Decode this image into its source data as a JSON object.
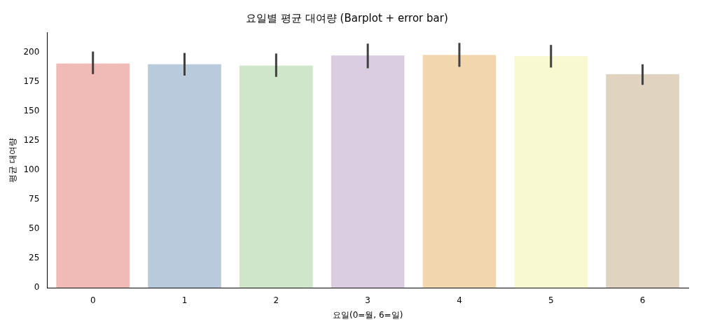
{
  "chart_data": {
    "type": "bar",
    "title": "요일별 평균 대여량 (Barplot + error bar)",
    "xlabel": "요일(0=월, 6=일)",
    "ylabel": "평균 대여량",
    "categories": [
      "0",
      "1",
      "2",
      "3",
      "4",
      "5",
      "6"
    ],
    "values": [
      190.4,
      189.8,
      188.7,
      197.2,
      197.7,
      196.6,
      181.4
    ],
    "colors": [
      "#f0bab7",
      "#b8cadc",
      "#d0e6cb",
      "#dacde1",
      "#f2d6ae",
      "#f8f8d1",
      "#e0d4c0"
    ],
    "errors": [
      [
        181.4,
        200.6
      ],
      [
        180.2,
        199.4
      ],
      [
        179.1,
        198.9
      ],
      [
        186.4,
        207.3
      ],
      [
        187.6,
        207.9
      ],
      [
        187.0,
        206.2
      ],
      [
        172.3,
        189.8
      ]
    ],
    "ylim": [
      0,
      217
    ],
    "yticks": [
      0,
      25,
      50,
      75,
      100,
      125,
      150,
      175,
      200
    ],
    "grid": false,
    "legend": false
  }
}
